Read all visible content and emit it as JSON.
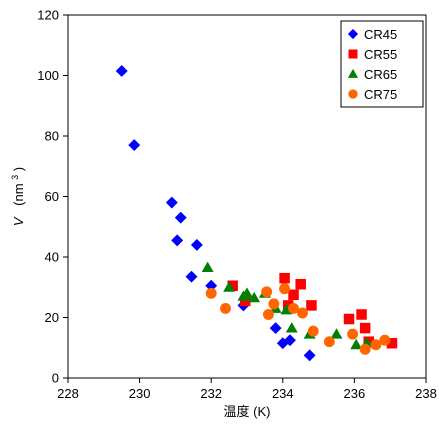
{
  "chart_data": {
    "type": "scatter",
    "title": "",
    "xlabel": "温度 (K)",
    "ylabel": "V  (nm³)",
    "ylabel_parts": {
      "var": "V",
      "unit_prefix": "(nm",
      "unit_sup": "3",
      "unit_suffix": ")"
    },
    "xlim": [
      228,
      238
    ],
    "ylim": [
      0,
      120
    ],
    "xticks": [
      228,
      230,
      232,
      234,
      236,
      238
    ],
    "yticks": [
      0,
      20,
      40,
      60,
      80,
      100,
      120
    ],
    "grid": false,
    "legend_position": "top-right",
    "series": [
      {
        "name": "CR45",
        "marker": "diamond",
        "color": "#0000FF",
        "points": [
          [
            229.5,
            101.5
          ],
          [
            229.85,
            77
          ],
          [
            230.9,
            58
          ],
          [
            231.15,
            53
          ],
          [
            231.05,
            45.5
          ],
          [
            231.6,
            44
          ],
          [
            231.45,
            33.5
          ],
          [
            232.0,
            30.5
          ],
          [
            232.9,
            24
          ],
          [
            233.8,
            16.5
          ],
          [
            234.0,
            11.5
          ],
          [
            234.2,
            12.5
          ],
          [
            234.75,
            7.5
          ]
        ]
      },
      {
        "name": "CR55",
        "marker": "square",
        "color": "#FF0000",
        "points": [
          [
            232.6,
            30.5
          ],
          [
            232.95,
            25.5
          ],
          [
            234.05,
            33
          ],
          [
            234.3,
            27.5
          ],
          [
            234.5,
            31
          ],
          [
            234.8,
            24
          ],
          [
            234.15,
            24
          ],
          [
            235.85,
            19.5
          ],
          [
            236.2,
            21
          ],
          [
            236.3,
            16.5
          ],
          [
            236.4,
            12
          ],
          [
            237.05,
            11.5
          ]
        ]
      },
      {
        "name": "CR65",
        "marker": "triangle",
        "color": "#008000",
        "points": [
          [
            231.9,
            36.5
          ],
          [
            232.5,
            30
          ],
          [
            233.0,
            28
          ],
          [
            232.9,
            27
          ],
          [
            233.2,
            26.5
          ],
          [
            233.5,
            28
          ],
          [
            233.8,
            23
          ],
          [
            234.1,
            22.5
          ],
          [
            234.25,
            16.5
          ],
          [
            234.75,
            14.5
          ],
          [
            235.5,
            14.5
          ],
          [
            236.05,
            11
          ],
          [
            236.35,
            11.5
          ]
        ]
      },
      {
        "name": "CR75",
        "marker": "circle",
        "color": "#FF6600",
        "points": [
          [
            232.0,
            28
          ],
          [
            232.4,
            23
          ],
          [
            233.55,
            28.5
          ],
          [
            233.75,
            24.5
          ],
          [
            233.6,
            21
          ],
          [
            234.05,
            29.5
          ],
          [
            234.3,
            23
          ],
          [
            234.55,
            21.5
          ],
          [
            234.85,
            15.5
          ],
          [
            235.3,
            12
          ],
          [
            235.95,
            14.5
          ],
          [
            236.3,
            9.5
          ],
          [
            236.6,
            11
          ],
          [
            236.85,
            12.5
          ]
        ]
      }
    ]
  }
}
